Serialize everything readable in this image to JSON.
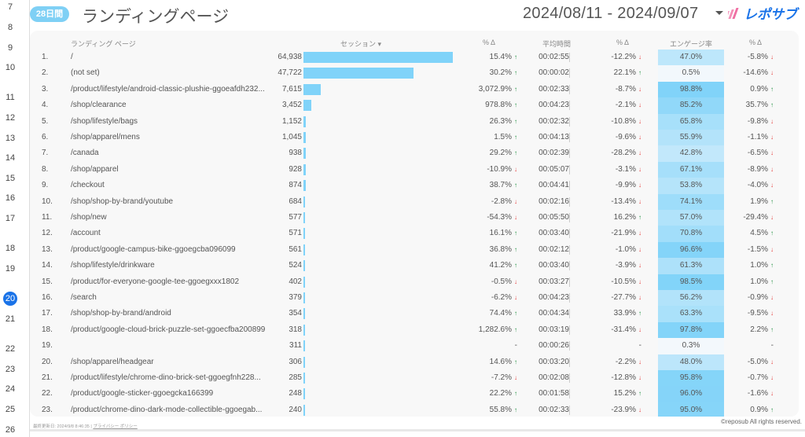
{
  "gutter_rows": [
    "7",
    "8",
    "9",
    "10",
    "11",
    "12",
    "13",
    "14",
    "15",
    "16",
    "17",
    "18",
    "19",
    "20",
    "21",
    "22",
    "23",
    "24",
    "25",
    "26"
  ],
  "gutter_active": "20",
  "header": {
    "badge": "28日間",
    "title": "ランディングページ",
    "date_range": "2024/08/11 - 2024/09/07",
    "logo_text": "レポサブ"
  },
  "table": {
    "columns": {
      "page": "ランディング ページ",
      "sessions": "セッション ▾",
      "delta1": "% Δ",
      "avg_time": "平均時間",
      "delta2": "% Δ",
      "engagement": "エンゲージ率",
      "delta3": "% Δ"
    },
    "max_sessions": 64938,
    "rows": [
      {
        "rank": "1.",
        "page": "/",
        "sessions": 64938,
        "sessions_label": "64,938",
        "d1": "15.4%",
        "d1_dir": "up",
        "avg": "00:02:55",
        "d2": "-12.2%",
        "d2_dir": "down",
        "eng": 47.0,
        "eng_label": "47.0%",
        "d3": "-5.8%",
        "d3_dir": "down"
      },
      {
        "rank": "2.",
        "page": "(not set)",
        "sessions": 47722,
        "sessions_label": "47,722",
        "d1": "30.2%",
        "d1_dir": "up",
        "avg": "00:00:02",
        "d2": "22.1%",
        "d2_dir": "up",
        "eng": 0.5,
        "eng_label": "0.5%",
        "d3": "-14.6%",
        "d3_dir": "down"
      },
      {
        "rank": "3.",
        "page": "/product/lifestyle/android-classic-plushie-ggoeafdh232...",
        "sessions": 7615,
        "sessions_label": "7,615",
        "d1": "3,072.9%",
        "d1_dir": "up",
        "avg": "00:02:33",
        "d2": "-8.7%",
        "d2_dir": "down",
        "eng": 98.8,
        "eng_label": "98.8%",
        "d3": "0.9%",
        "d3_dir": "up"
      },
      {
        "rank": "4.",
        "page": "/shop/clearance",
        "sessions": 3452,
        "sessions_label": "3,452",
        "d1": "978.8%",
        "d1_dir": "up",
        "avg": "00:04:23",
        "d2": "-2.1%",
        "d2_dir": "down",
        "eng": 85.2,
        "eng_label": "85.2%",
        "d3": "35.7%",
        "d3_dir": "up"
      },
      {
        "rank": "5.",
        "page": "/shop/lifestyle/bags",
        "sessions": 1152,
        "sessions_label": "1,152",
        "d1": "26.3%",
        "d1_dir": "up",
        "avg": "00:02:32",
        "d2": "-10.8%",
        "d2_dir": "down",
        "eng": 65.8,
        "eng_label": "65.8%",
        "d3": "-9.8%",
        "d3_dir": "down"
      },
      {
        "rank": "6.",
        "page": "/shop/apparel/mens",
        "sessions": 1045,
        "sessions_label": "1,045",
        "d1": "1.5%",
        "d1_dir": "up",
        "avg": "00:04:13",
        "d2": "-9.6%",
        "d2_dir": "down",
        "eng": 55.9,
        "eng_label": "55.9%",
        "d3": "-1.1%",
        "d3_dir": "down"
      },
      {
        "rank": "7.",
        "page": "/canada",
        "sessions": 938,
        "sessions_label": "938",
        "d1": "29.2%",
        "d1_dir": "up",
        "avg": "00:02:39",
        "d2": "-28.2%",
        "d2_dir": "down",
        "eng": 42.8,
        "eng_label": "42.8%",
        "d3": "-6.5%",
        "d3_dir": "down"
      },
      {
        "rank": "8.",
        "page": "/shop/apparel",
        "sessions": 928,
        "sessions_label": "928",
        "d1": "-10.9%",
        "d1_dir": "down",
        "avg": "00:05:07",
        "d2": "-3.1%",
        "d2_dir": "down",
        "eng": 67.1,
        "eng_label": "67.1%",
        "d3": "-8.9%",
        "d3_dir": "down"
      },
      {
        "rank": "9.",
        "page": "/checkout",
        "sessions": 874,
        "sessions_label": "874",
        "d1": "38.7%",
        "d1_dir": "up",
        "avg": "00:04:41",
        "d2": "-9.9%",
        "d2_dir": "down",
        "eng": 53.8,
        "eng_label": "53.8%",
        "d3": "-4.0%",
        "d3_dir": "down"
      },
      {
        "rank": "10.",
        "page": "/shop/shop-by-brand/youtube",
        "sessions": 684,
        "sessions_label": "684",
        "d1": "-2.8%",
        "d1_dir": "down",
        "avg": "00:02:16",
        "d2": "-13.4%",
        "d2_dir": "down",
        "eng": 74.1,
        "eng_label": "74.1%",
        "d3": "1.9%",
        "d3_dir": "up"
      },
      {
        "rank": "11.",
        "page": "/shop/new",
        "sessions": 577,
        "sessions_label": "577",
        "d1": "-54.3%",
        "d1_dir": "down",
        "avg": "00:05:50",
        "d2": "16.2%",
        "d2_dir": "up",
        "eng": 57.0,
        "eng_label": "57.0%",
        "d3": "-29.4%",
        "d3_dir": "down"
      },
      {
        "rank": "12.",
        "page": "/account",
        "sessions": 571,
        "sessions_label": "571",
        "d1": "16.1%",
        "d1_dir": "up",
        "avg": "00:03:40",
        "d2": "-21.9%",
        "d2_dir": "down",
        "eng": 70.8,
        "eng_label": "70.8%",
        "d3": "4.5%",
        "d3_dir": "up"
      },
      {
        "rank": "13.",
        "page": "/product/google-campus-bike-ggoegcba096099",
        "sessions": 561,
        "sessions_label": "561",
        "d1": "36.8%",
        "d1_dir": "up",
        "avg": "00:02:12",
        "d2": "-1.0%",
        "d2_dir": "down",
        "eng": 96.6,
        "eng_label": "96.6%",
        "d3": "-1.5%",
        "d3_dir": "down"
      },
      {
        "rank": "14.",
        "page": "/shop/lifestyle/drinkware",
        "sessions": 524,
        "sessions_label": "524",
        "d1": "41.2%",
        "d1_dir": "up",
        "avg": "00:03:40",
        "d2": "-3.9%",
        "d2_dir": "down",
        "eng": 61.3,
        "eng_label": "61.3%",
        "d3": "1.0%",
        "d3_dir": "up"
      },
      {
        "rank": "15.",
        "page": "/product/for-everyone-google-tee-ggoegxxx1802",
        "sessions": 402,
        "sessions_label": "402",
        "d1": "-0.5%",
        "d1_dir": "down",
        "avg": "00:03:27",
        "d2": "-10.5%",
        "d2_dir": "down",
        "eng": 98.5,
        "eng_label": "98.5%",
        "d3": "1.0%",
        "d3_dir": "up"
      },
      {
        "rank": "16.",
        "page": "/search",
        "sessions": 379,
        "sessions_label": "379",
        "d1": "-6.2%",
        "d1_dir": "down",
        "avg": "00:04:23",
        "d2": "-27.7%",
        "d2_dir": "down",
        "eng": 56.2,
        "eng_label": "56.2%",
        "d3": "-0.9%",
        "d3_dir": "down"
      },
      {
        "rank": "17.",
        "page": "/shop/shop-by-brand/android",
        "sessions": 354,
        "sessions_label": "354",
        "d1": "74.4%",
        "d1_dir": "up",
        "avg": "00:04:34",
        "d2": "33.9%",
        "d2_dir": "up",
        "eng": 63.3,
        "eng_label": "63.3%",
        "d3": "-9.5%",
        "d3_dir": "down"
      },
      {
        "rank": "18.",
        "page": "/product/google-cloud-brick-puzzle-set-ggoecfba200899",
        "sessions": 318,
        "sessions_label": "318",
        "d1": "1,282.6%",
        "d1_dir": "up",
        "avg": "00:03:19",
        "d2": "-31.4%",
        "d2_dir": "down",
        "eng": 97.8,
        "eng_label": "97.8%",
        "d3": "2.2%",
        "d3_dir": "up"
      },
      {
        "rank": "19.",
        "page": "",
        "sessions": 311,
        "sessions_label": "311",
        "d1": "-",
        "d1_dir": "",
        "avg": "00:00:26",
        "d2": "-",
        "d2_dir": "",
        "eng": 0.3,
        "eng_label": "0.3%",
        "d3": "-",
        "d3_dir": ""
      },
      {
        "rank": "20.",
        "page": "/shop/apparel/headgear",
        "sessions": 306,
        "sessions_label": "306",
        "d1": "14.6%",
        "d1_dir": "up",
        "avg": "00:03:20",
        "d2": "-2.2%",
        "d2_dir": "down",
        "eng": 48.0,
        "eng_label": "48.0%",
        "d3": "-5.0%",
        "d3_dir": "down"
      },
      {
        "rank": "21.",
        "page": "/product/lifestyle/chrome-dino-brick-set-ggoegfnh228...",
        "sessions": 285,
        "sessions_label": "285",
        "d1": "-7.2%",
        "d1_dir": "down",
        "avg": "00:02:08",
        "d2": "-12.8%",
        "d2_dir": "down",
        "eng": 95.8,
        "eng_label": "95.8%",
        "d3": "-0.7%",
        "d3_dir": "down"
      },
      {
        "rank": "22.",
        "page": "/product/google-sticker-ggoegcka166399",
        "sessions": 248,
        "sessions_label": "248",
        "d1": "22.2%",
        "d1_dir": "up",
        "avg": "00:01:58",
        "d2": "15.2%",
        "d2_dir": "up",
        "eng": 96.0,
        "eng_label": "96.0%",
        "d3": "-1.6%",
        "d3_dir": "down"
      },
      {
        "rank": "23.",
        "page": "/product/chrome-dino-dark-mode-collectible-ggoegab...",
        "sessions": 240,
        "sessions_label": "240",
        "d1": "55.8%",
        "d1_dir": "up",
        "avg": "00:02:33",
        "d2": "-23.9%",
        "d2_dir": "down",
        "eng": 95.0,
        "eng_label": "95.0%",
        "d3": "0.9%",
        "d3_dir": "up"
      }
    ]
  },
  "footer": {
    "updated": "最終更新日: 2024/9/8 8:46:35",
    "separator": "|",
    "privacy": "プライバシー ポリシー",
    "copyright": "©reposub All rights reserved."
  },
  "colors": {
    "accent": "#80d3f9",
    "up": "#1e8e3e",
    "down": "#e53935",
    "eng_low": "#f3f8fc",
    "eng_high": "#80d3f9"
  }
}
